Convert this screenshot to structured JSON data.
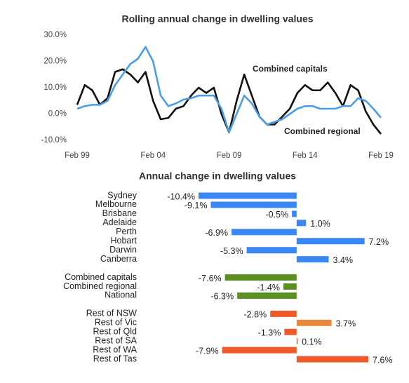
{
  "chart_data": [
    {
      "type": "line",
      "title": "Rolling annual change in dwelling values",
      "x": [
        1999,
        1999.5,
        2000,
        2000.5,
        2001,
        2001.5,
        2002,
        2002.5,
        2003,
        2003.5,
        2004,
        2004.5,
        2005,
        2005.5,
        2006,
        2006.5,
        2007,
        2007.5,
        2008,
        2008.5,
        2009,
        2009.5,
        2010,
        2010.5,
        2011,
        2011.5,
        2012,
        2012.5,
        2013,
        2013.5,
        2014,
        2014.5,
        2015,
        2015.5,
        2016,
        2016.5,
        2017,
        2017.5,
        2018,
        2018.5,
        2019
      ],
      "xlim": [
        1999,
        2019
      ],
      "xticks": [
        {
          "value": 1999,
          "label": "Feb 99"
        },
        {
          "value": 2004,
          "label": "Feb 04"
        },
        {
          "value": 2009,
          "label": "Feb 09"
        },
        {
          "value": 2014,
          "label": "Feb 14"
        },
        {
          "value": 2019,
          "label": "Feb 19"
        }
      ],
      "ylim": [
        -10,
        30
      ],
      "yticks": [
        {
          "value": -10,
          "label": "-10.0%"
        },
        {
          "value": 0,
          "label": "0.0%"
        },
        {
          "value": 10,
          "label": "10.0%"
        },
        {
          "value": 20,
          "label": "20.0%"
        },
        {
          "value": 30,
          "label": "30.0%"
        }
      ],
      "series": [
        {
          "name": "Combined capitals",
          "color": "#111111",
          "values": [
            3.5,
            11,
            9,
            3.5,
            6,
            16,
            17,
            15,
            12,
            16,
            5,
            -2,
            -1.5,
            2,
            3,
            7,
            10,
            8,
            10,
            0,
            -7,
            5,
            15,
            7,
            -1,
            -4,
            -4,
            -1,
            2,
            8,
            11,
            9,
            9,
            12,
            8,
            3,
            11,
            9,
            1,
            -4,
            -7.6
          ]
        },
        {
          "name": "Combined regional",
          "color": "#4b9ee6",
          "values": [
            2,
            3,
            3.5,
            3.5,
            5,
            11,
            15,
            19,
            21,
            25.5,
            20,
            7,
            3,
            4,
            5.5,
            6,
            7,
            7,
            7,
            2,
            -7,
            0,
            7,
            4,
            -1,
            -4,
            -3,
            -2,
            0,
            2,
            3,
            3,
            2,
            2,
            2,
            3,
            3,
            6,
            5,
            2,
            -1.4
          ]
        }
      ]
    },
    {
      "type": "bar",
      "orientation": "horizontal",
      "title": "Annual change in dwelling values",
      "categories": [
        "Sydney",
        "Melbourne",
        "Brisbane",
        "Adelaide",
        "Perth",
        "Hobart",
        "Darwin",
        "Canberra",
        null,
        "Combined capitals",
        "Combined regional",
        "National",
        null,
        "Rest of NSW",
        "Rest of Vic",
        "Rest of Qld",
        "Rest of SA",
        "Rest of WA",
        "Rest of Tas"
      ],
      "values": [
        -10.4,
        -9.1,
        -0.5,
        1.0,
        -6.9,
        7.2,
        -5.3,
        3.4,
        null,
        -7.6,
        -1.4,
        -6.3,
        null,
        -2.8,
        3.7,
        -1.3,
        0.1,
        -7.9,
        7.6
      ],
      "value_labels": [
        "-10.4%",
        "-9.1%",
        "-0.5%",
        "1.0%",
        "-6.9%",
        "7.2%",
        "-5.3%",
        "3.4%",
        null,
        "-7.6%",
        "-1.4%",
        "-6.3%",
        null,
        "-2.8%",
        "3.7%",
        "-1.3%",
        "0.1%",
        "-7.9%",
        "7.6%"
      ],
      "colors": [
        "#3a86f2",
        "#3a86f2",
        "#3a86f2",
        "#3a86f2",
        "#3a86f2",
        "#3a86f2",
        "#3a86f2",
        "#3a86f2",
        null,
        "#5b8f22",
        "#5b8f22",
        "#5b8f22",
        null,
        "#f0592a",
        "#e8883a",
        "#f0592a",
        "#f0592a",
        "#f0592a",
        "#f0592a"
      ]
    }
  ]
}
